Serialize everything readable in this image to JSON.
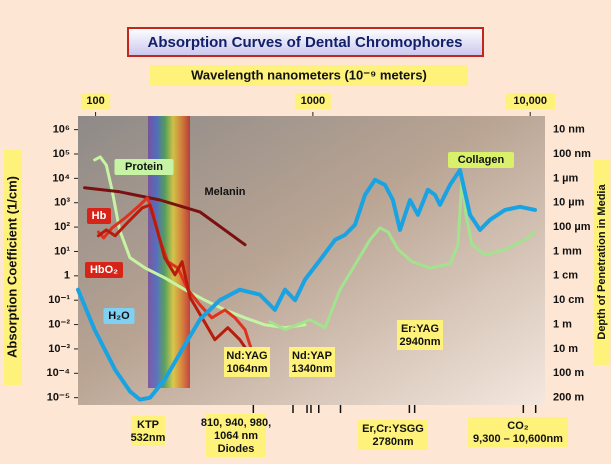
{
  "chart_data": {
    "type": "line",
    "title": "Absorption Curves of Dental Chromophores",
    "x_label": "Wavelength nanometers (10⁻⁹ meters)",
    "y_label": "Absorption Coefficient (1/cm)",
    "y2_label": "Depth of Penetration in Media",
    "xscale": "log",
    "yscale": "log",
    "xlim": [
      83,
      11700
    ],
    "xticks": [
      100,
      1000,
      {
        "value": 10000,
        "label": "10,000"
      }
    ],
    "ylim": [
      5e-06,
      3000000
    ],
    "yticks": [
      {
        "value": 1000000,
        "label": "10⁶"
      },
      {
        "value": 100000,
        "label": "10⁵"
      },
      {
        "value": 10000,
        "label": "10⁴"
      },
      {
        "value": 1000,
        "label": "10³"
      },
      {
        "value": 100,
        "label": "10²"
      },
      {
        "value": 10,
        "label": "10¹"
      },
      1,
      {
        "value": 0.1,
        "label": "10⁻¹"
      },
      {
        "value": 0.01,
        "label": "10⁻²"
      },
      {
        "value": 0.001,
        "label": "10⁻³"
      },
      {
        "value": 0.0001,
        "label": "10⁻⁴"
      },
      {
        "value": 1e-05,
        "label": "10⁻⁵"
      }
    ],
    "depth_labels": [
      "10 nm",
      "100 nm",
      "1 µm",
      "10 µm",
      "100 µm",
      "1 mm",
      "1 cm",
      "10 cm",
      "1 m",
      "10 m",
      "100 m",
      "200 m"
    ],
    "series": [
      {
        "name": "Protein",
        "color": "#c6f3a4",
        "x": [
          99,
          105,
          112,
          119,
          129,
          144,
          169,
          208,
          258,
          318,
          394,
          487,
          601,
          744,
          920
        ],
        "values": [
          57000,
          76000,
          35000,
          3400,
          77,
          5.5,
          2.1,
          0.83,
          0.27,
          0.1,
          0.04,
          0.019,
          0.0098,
          0.0074,
          0.0098
        ]
      },
      {
        "name": "Collagen",
        "color": "#a3e28f",
        "x": [
          635,
          744,
          970,
          1138,
          1333,
          1563,
          1832,
          2037,
          2218,
          2466,
          2858,
          3459,
          4276,
          4656,
          4853,
          5067,
          5397,
          6194,
          7656,
          9455,
          10520
        ],
        "values": [
          0.013,
          0.0062,
          0.016,
          0.0074,
          0.27,
          2.8,
          30,
          93,
          63,
          12,
          3.8,
          2.1,
          3.1,
          19,
          10500,
          320,
          19,
          7.2,
          12,
          30,
          63
        ]
      },
      {
        "name": "Melanin",
        "color": "#7a1010",
        "x": [
          89,
          129,
          198,
          302,
          487
        ],
        "values": [
          4100,
          2800,
          1300,
          420,
          19
        ]
      },
      {
        "name": "Hb",
        "color": "#e0301e",
        "x": [
          103,
          109,
          119,
          137,
          160,
          173,
          182,
          198,
          215,
          239,
          266,
          302,
          343,
          394,
          438,
          487,
          525
        ],
        "values": [
          63,
          36,
          93,
          240,
          810,
          1600,
          510,
          30,
          3.8,
          2.1,
          0.27,
          0.065,
          0.019,
          0.04,
          0.019,
          0.0062,
          0.00078
        ]
      },
      {
        "name": "HbO₂",
        "color": "#b81c0c",
        "x": [
          103,
          112,
          123,
          141,
          164,
          178,
          192,
          208,
          232,
          250,
          272,
          309,
          354,
          406,
          461,
          514
        ],
        "values": [
          44,
          77,
          44,
          160,
          620,
          810,
          77,
          5.5,
          1.1,
          3.8,
          0.13,
          0.019,
          0.0024,
          0.0074,
          0.0024,
          0.00058
        ]
      },
      {
        "name": "H₂O",
        "color": "#1aa3e3",
        "x": [
          83,
          99,
          123,
          144,
          160,
          178,
          208,
          258,
          302,
          373,
          461,
          570,
          669,
          744,
          828,
          920,
          1079,
          1265,
          1406,
          1563,
          1738,
          1932,
          2148,
          2335,
          2518,
          2799,
          3043,
          3383,
          3648,
          3846,
          4276,
          4753,
          5284,
          5875,
          6531,
          7656,
          8974,
          10520
        ],
        "values": [
          0.27,
          0.0062,
          0.00014,
          1.8e-05,
          8.3e-06,
          1e-05,
          5.5e-05,
          0.0015,
          0.016,
          0.1,
          0.27,
          0.17,
          0.04,
          0.27,
          0.1,
          0.7,
          4.5,
          30,
          48,
          124,
          2100,
          8700,
          5400,
          1300,
          77,
          1300,
          320,
          3400,
          2100,
          820,
          5400,
          22000,
          320,
          77,
          200,
          510,
          680,
          510
        ]
      }
    ],
    "lasers": [
      {
        "label": [
          "KTP",
          "532nm"
        ],
        "wavelengths": [
          532
        ]
      },
      {
        "label": [
          "810, 940, 980,",
          "1064 nm",
          "Diodes"
        ],
        "wavelengths": [
          810,
          940,
          980,
          1064
        ]
      },
      {
        "label": [
          "Nd:YAG",
          "1064nm"
        ],
        "wavelengths": [
          1064
        ]
      },
      {
        "label": [
          "Nd:YAP",
          "1340nm"
        ],
        "wavelengths": [
          1340
        ]
      },
      {
        "label": [
          "Er,Cr:YSGG",
          "2780nm"
        ],
        "wavelengths": [
          2780
        ]
      },
      {
        "label": [
          "Er:YAG",
          "2940nm"
        ],
        "wavelengths": [
          2940
        ]
      },
      {
        "label": [
          "CO₂",
          "9,300 – 10,600nm"
        ],
        "wavelengths": [
          9300,
          10600
        ]
      }
    ]
  }
}
